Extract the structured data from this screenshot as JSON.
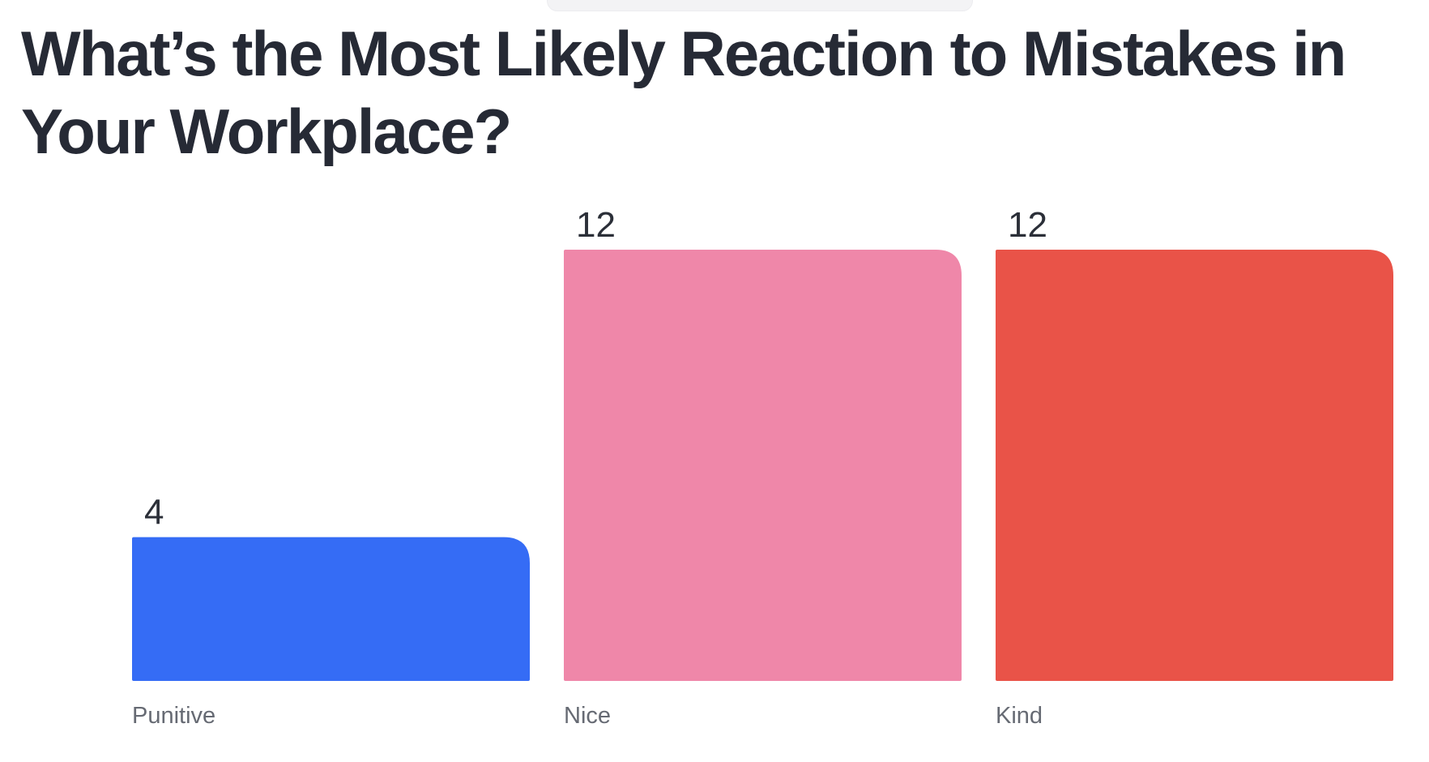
{
  "title": "What’s the Most Likely Reaction to Mistakes in Your Workplace?",
  "chart_data": {
    "type": "bar",
    "title": "What’s the Most Likely Reaction to Mistakes in Your Workplace?",
    "categories": [
      "Punitive",
      "Nice",
      "Kind"
    ],
    "values": [
      4,
      12,
      12
    ],
    "colors": [
      "#356cf5",
      "#ef87a9",
      "#e95348"
    ],
    "xlabel": "",
    "ylabel": "",
    "ylim": [
      0,
      12
    ],
    "grid": false,
    "legend": "none"
  }
}
